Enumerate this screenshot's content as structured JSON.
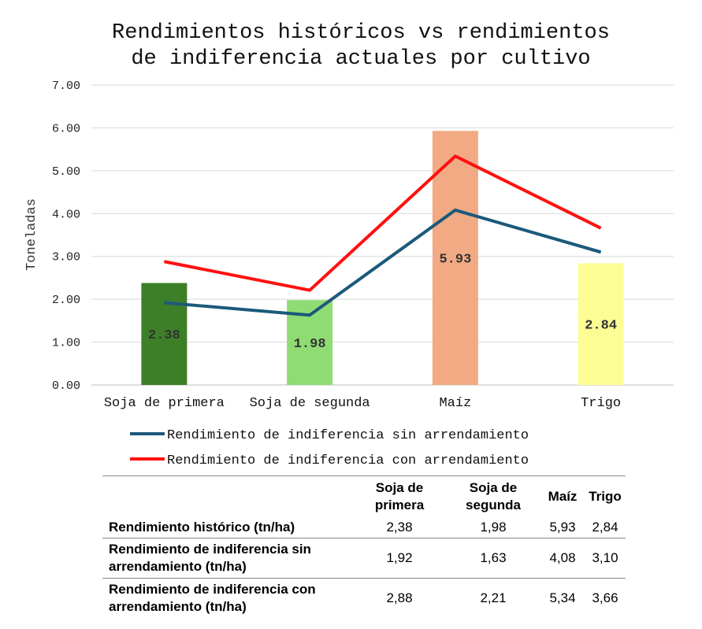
{
  "chart_data": {
    "type": "bar",
    "title": [
      "Rendimientos históricos vs rendimientos",
      "de indiferencia actuales por cultivo"
    ],
    "ylabel": "Toneladas",
    "xlabel": "",
    "ylim": [
      0,
      7
    ],
    "yticks": [
      "0.00",
      "1.00",
      "2.00",
      "3.00",
      "4.00",
      "5.00",
      "6.00",
      "7.00"
    ],
    "grid": true,
    "legend_position": "bottom",
    "categories": [
      "Soja de primera",
      "Soja de segunda",
      "Maíz",
      "Trigo"
    ],
    "bars": {
      "values": [
        2.38,
        1.98,
        5.93,
        2.84
      ],
      "data_labels": [
        "2.38",
        "1.98",
        "5.93",
        "2.84"
      ],
      "colors": [
        "#3d7f28",
        "#8fdb74",
        "#f2aa85",
        "#fdfd96"
      ]
    },
    "series": [
      {
        "name": "Rendimiento de indiferencia sin arrendamiento",
        "type": "line",
        "color": "#1b5a7a",
        "values": [
          1.92,
          1.63,
          4.08,
          3.1
        ]
      },
      {
        "name": "Rendimiento de indiferencia con arrendamiento",
        "type": "line",
        "color": "#ff1010",
        "values": [
          2.88,
          2.21,
          5.34,
          3.66
        ]
      }
    ]
  },
  "table": {
    "headers": [
      "Soja de\nprimera",
      "Soja de\nsegunda",
      "Maíz",
      "Trigo"
    ],
    "rows": [
      {
        "label": "Rendimiento histórico (tn/ha)",
        "values": [
          "2,38",
          "1,98",
          "5,93",
          "2,84"
        ]
      },
      {
        "label": "Rendimiento de indiferencia sin arrendamiento (tn/ha)",
        "values": [
          "1,92",
          "1,63",
          "4,08",
          "3,10"
        ]
      },
      {
        "label": "Rendimiento de indiferencia con arrendamiento (tn/ha)",
        "values": [
          "2,88",
          "2,21",
          "5,34",
          "3,66"
        ]
      }
    ]
  }
}
